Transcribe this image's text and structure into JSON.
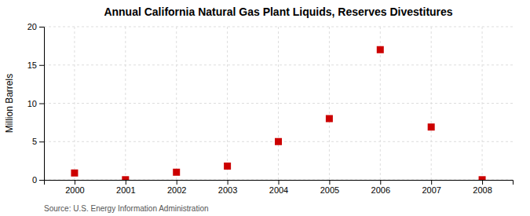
{
  "chart_data": {
    "type": "scatter",
    "title": "Annual California Natural Gas Plant Liquids, Reserves Divestitures",
    "y_label": "Million Barrels",
    "annotations": [
      "Source: U.S. Energy Information Administration"
    ],
    "x": [
      2000,
      2001,
      2002,
      2003,
      2004,
      2005,
      2006,
      2007,
      2008
    ],
    "values": [
      0.9,
      0.02,
      1.0,
      1.8,
      5.0,
      8.0,
      17.0,
      6.9,
      0.02
    ],
    "color": "#cc0000",
    "marker": "square",
    "xlim": [
      1999.4,
      2008.6
    ],
    "xticks": [
      2000,
      2001,
      2002,
      2003,
      2004,
      2005,
      2006,
      2007,
      2008
    ],
    "ylim": [
      0,
      20
    ],
    "yticks": [
      0,
      5,
      10,
      15,
      20
    ],
    "grid": true
  }
}
